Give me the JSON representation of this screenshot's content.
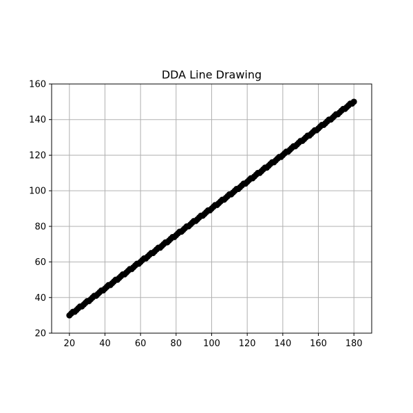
{
  "chart_data": {
    "type": "scatter",
    "title": "DDA Line Drawing",
    "xlabel": "",
    "ylabel": "",
    "xlim": [
      10,
      190
    ],
    "ylim": [
      20,
      160
    ],
    "xticks": [
      20,
      40,
      60,
      80,
      100,
      120,
      140,
      160,
      180
    ],
    "yticks": [
      20,
      40,
      60,
      80,
      100,
      120,
      140,
      160
    ],
    "grid": true,
    "marker_color": "#000000",
    "series": [
      {
        "start": [
          20,
          30
        ],
        "end": [
          180,
          150
        ],
        "x": [
          20,
          21,
          22,
          23,
          24,
          25,
          26,
          27,
          28,
          29,
          30,
          31,
          32,
          33,
          34,
          35,
          36,
          37,
          38,
          39,
          40,
          41,
          42,
          43,
          44,
          45,
          46,
          47,
          48,
          49,
          50,
          51,
          52,
          53,
          54,
          55,
          56,
          57,
          58,
          59,
          60,
          61,
          62,
          63,
          64,
          65,
          66,
          67,
          68,
          69,
          70,
          71,
          72,
          73,
          74,
          75,
          76,
          77,
          78,
          79,
          80,
          81,
          82,
          83,
          84,
          85,
          86,
          87,
          88,
          89,
          90,
          91,
          92,
          93,
          94,
          95,
          96,
          97,
          98,
          99,
          100,
          101,
          102,
          103,
          104,
          105,
          106,
          107,
          108,
          109,
          110,
          111,
          112,
          113,
          114,
          115,
          116,
          117,
          118,
          119,
          120,
          121,
          122,
          123,
          124,
          125,
          126,
          127,
          128,
          129,
          130,
          131,
          132,
          133,
          134,
          135,
          136,
          137,
          138,
          139,
          140,
          141,
          142,
          143,
          144,
          145,
          146,
          147,
          148,
          149,
          150,
          151,
          152,
          153,
          154,
          155,
          156,
          157,
          158,
          159,
          160,
          161,
          162,
          163,
          164,
          165,
          166,
          167,
          168,
          169,
          170,
          171,
          172,
          173,
          174,
          175,
          176,
          177,
          178,
          179,
          180
        ],
        "y": [
          30,
          31,
          32,
          32,
          33,
          34,
          35,
          35,
          36,
          37,
          38,
          38,
          39,
          40,
          41,
          41,
          42,
          43,
          44,
          44,
          45,
          46,
          47,
          47,
          48,
          49,
          50,
          50,
          51,
          52,
          53,
          53,
          54,
          55,
          56,
          56,
          57,
          58,
          59,
          59,
          60,
          61,
          62,
          62,
          63,
          64,
          65,
          65,
          66,
          67,
          68,
          68,
          69,
          70,
          71,
          71,
          72,
          73,
          74,
          74,
          75,
          76,
          77,
          77,
          78,
          79,
          80,
          80,
          81,
          82,
          83,
          83,
          84,
          85,
          86,
          86,
          87,
          88,
          89,
          89,
          90,
          91,
          92,
          92,
          93,
          94,
          95,
          95,
          96,
          97,
          98,
          98,
          99,
          100,
          101,
          101,
          102,
          103,
          104,
          104,
          105,
          106,
          107,
          107,
          108,
          109,
          110,
          110,
          111,
          112,
          113,
          113,
          114,
          115,
          116,
          116,
          117,
          118,
          119,
          119,
          120,
          121,
          122,
          122,
          123,
          124,
          125,
          125,
          126,
          127,
          128,
          128,
          129,
          130,
          131,
          131,
          132,
          133,
          134,
          134,
          135,
          136,
          137,
          137,
          138,
          139,
          140,
          140,
          141,
          142,
          143,
          143,
          144,
          145,
          146,
          146,
          147,
          148,
          149,
          149,
          150
        ]
      }
    ]
  }
}
